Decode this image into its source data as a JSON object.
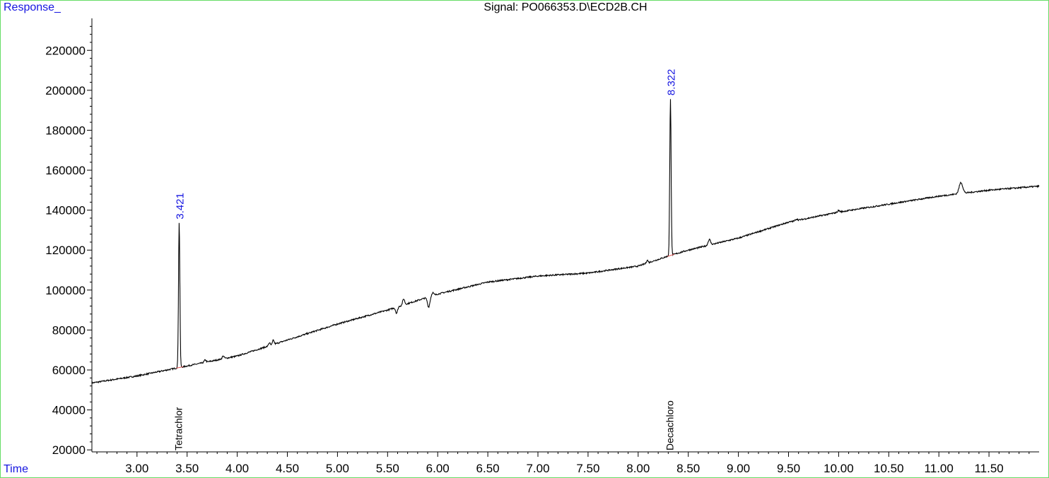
{
  "chart_data": {
    "type": "line",
    "title": "Signal: PO066353.D\\ECD2B.CH",
    "ylabel": "Response_",
    "xlabel": "Time",
    "xlim": [
      2.55,
      12.0
    ],
    "ylim": [
      19000,
      236000
    ],
    "x_ticks": [
      3.0,
      3.5,
      4.0,
      4.5,
      5.0,
      5.5,
      6.0,
      6.5,
      7.0,
      7.5,
      8.0,
      8.5,
      9.0,
      9.5,
      10.0,
      10.5,
      11.0,
      11.5
    ],
    "x_tick_labels": [
      "3.00",
      "3.50",
      "4.00",
      "4.50",
      "5.00",
      "5.50",
      "6.00",
      "6.50",
      "7.00",
      "7.50",
      "8.00",
      "8.50",
      "9.00",
      "9.50",
      "10.00",
      "10.50",
      "11.00",
      "11.50"
    ],
    "y_ticks": [
      20000,
      40000,
      60000,
      80000,
      100000,
      120000,
      140000,
      160000,
      180000,
      200000,
      220000
    ],
    "y_tick_labels": [
      "20000",
      "40000",
      "60000",
      "80000",
      "100000",
      "120000",
      "140000",
      "160000",
      "180000",
      "200000",
      "220000"
    ],
    "baseline": {
      "x": [
        2.55,
        3.0,
        3.5,
        4.0,
        4.5,
        5.0,
        5.5,
        6.0,
        6.5,
        7.0,
        7.5,
        8.0,
        8.3,
        8.5,
        9.0,
        9.5,
        10.0,
        10.5,
        11.0,
        11.5,
        12.0
      ],
      "y": [
        53500,
        57000,
        62000,
        67000,
        75000,
        83000,
        90000,
        98000,
        104000,
        107000,
        108500,
        112000,
        117000,
        120000,
        126000,
        134000,
        139000,
        143000,
        147000,
        150000,
        152000
      ]
    },
    "bumps": [
      {
        "x": 3.68,
        "h": 1200,
        "w": 0.01
      },
      {
        "x": 3.86,
        "h": 1300,
        "w": 0.01
      },
      {
        "x": 4.32,
        "h": 1500,
        "w": 0.008
      },
      {
        "x": 4.36,
        "h": 2200,
        "w": 0.008
      },
      {
        "x": 5.59,
        "h": -3000,
        "w": 0.01
      },
      {
        "x": 5.66,
        "h": 3000,
        "w": 0.01
      },
      {
        "x": 5.91,
        "h": -5000,
        "w": 0.012
      },
      {
        "x": 5.95,
        "h": 1500,
        "w": 0.01
      },
      {
        "x": 8.09,
        "h": 1500,
        "w": 0.008
      },
      {
        "x": 8.71,
        "h": 2800,
        "w": 0.012
      },
      {
        "x": 9.58,
        "h": 800,
        "w": 0.01
      },
      {
        "x": 10.0,
        "h": 800,
        "w": 0.01
      },
      {
        "x": 11.22,
        "h": 5500,
        "w": 0.018
      }
    ],
    "peaks": [
      {
        "rt": 3.421,
        "label": "3.421",
        "apex": 134000,
        "width": 0.016,
        "compound": "Tetrachlor"
      },
      {
        "rt": 8.322,
        "label": "8.322",
        "apex": 196000,
        "width": 0.016,
        "compound": "Decachloro"
      }
    ],
    "colors": {
      "trace": "#000000",
      "peak_label": "#1515e0",
      "integration": "#e05050",
      "axis": "#000000",
      "frame": "#66dd66"
    }
  }
}
